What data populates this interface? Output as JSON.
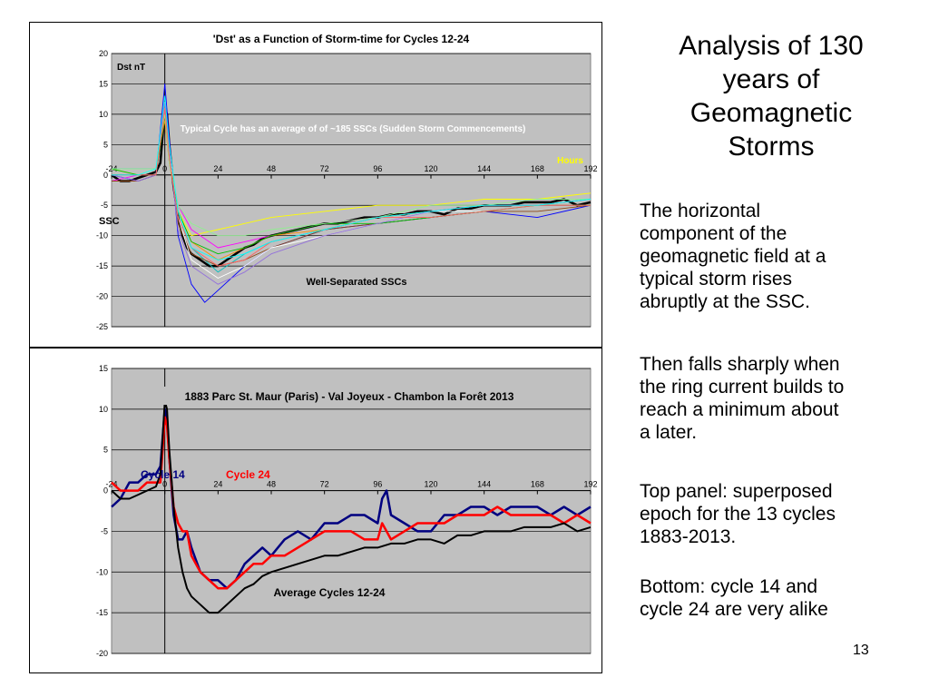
{
  "slide": {
    "title_lines": [
      "Analysis of 130",
      "years of",
      "Geomagnetic",
      "Storms"
    ],
    "paragraphs": [
      [
        "The horizontal",
        "component of the",
        "geomagnetic field at a",
        "typical storm rises",
        "abruptly at the SSC."
      ],
      [
        "Then falls sharply when",
        "the ring current builds to",
        "reach a minimum about",
        "a later."
      ],
      [
        "Top panel: superposed",
        "epoch for the 13 cycles",
        "1883-2013."
      ],
      [
        "Bottom: cycle 14 and",
        "cycle 24 are very alike"
      ]
    ],
    "page_number": "13"
  },
  "chart_data": [
    {
      "type": "line",
      "title": "'Dst' as a Function of Storm-time for Cycles 12-24",
      "xlabel": "Hours",
      "ylabel": "Dst nT",
      "xlim": [
        -24,
        192
      ],
      "ylim": [
        -25,
        20
      ],
      "xticks": [
        -24,
        0,
        24,
        48,
        72,
        96,
        120,
        144,
        168,
        192
      ],
      "yticks": [
        20,
        15,
        10,
        5,
        0,
        -5,
        -10,
        -15,
        -20,
        -25
      ],
      "grid": true,
      "background": "#c0c0c0",
      "annotations": {
        "note": "Typical Cycle has an average of of ~185 SSCs (Sudden Storm Commencements)",
        "ssc": "SSC",
        "bottom": "Well-Separated SSCs"
      },
      "series": [
        {
          "key": "average",
          "color": "#000000",
          "width": 2.5,
          "x": [
            -24,
            -20,
            -16,
            -12,
            -8,
            -4,
            -2,
            0,
            1,
            2,
            4,
            6,
            8,
            10,
            12,
            16,
            20,
            24,
            28,
            32,
            36,
            40,
            44,
            48,
            54,
            60,
            66,
            72,
            78,
            84,
            90,
            96,
            102,
            108,
            114,
            120,
            126,
            132,
            138,
            144,
            150,
            156,
            162,
            168,
            174,
            180,
            186,
            192
          ],
          "y": [
            0,
            -1,
            -1,
            -0.5,
            0,
            0.5,
            2,
            11,
            10,
            5,
            -2,
            -7,
            -10,
            -12,
            -13,
            -14,
            -15,
            -15,
            -14,
            -13,
            -12,
            -11.5,
            -10.5,
            -10,
            -9.5,
            -9,
            -8.5,
            -8,
            -8,
            -7.5,
            -7,
            -7,
            -6.5,
            -6.5,
            -6,
            -6,
            -6.5,
            -5.5,
            -5.5,
            -5,
            -5,
            -5,
            -4.5,
            -4.5,
            -4.5,
            -4,
            -5,
            -4.5
          ]
        },
        {
          "key": "c1",
          "color": "#ffff00",
          "width": 0.9,
          "x": [
            -24,
            -12,
            -4,
            0,
            2,
            6,
            12,
            24,
            36,
            48,
            72,
            96,
            120,
            144,
            168,
            192
          ],
          "y": [
            1,
            0,
            1,
            12,
            4,
            -6,
            -10,
            -9,
            -8,
            -7,
            -6,
            -5,
            -5,
            -4,
            -4,
            -3
          ]
        },
        {
          "key": "c2",
          "color": "#0000ff",
          "width": 0.9,
          "x": [
            -24,
            -12,
            -4,
            0,
            2,
            6,
            12,
            18,
            24,
            36,
            48,
            72,
            96,
            120,
            144,
            168,
            192
          ],
          "y": [
            0,
            -1,
            0,
            15,
            6,
            -10,
            -18,
            -21,
            -19,
            -15,
            -12,
            -9,
            -8,
            -7,
            -6,
            -7,
            -5
          ]
        },
        {
          "key": "c3",
          "color": "#ff00ff",
          "width": 0.9,
          "x": [
            -24,
            -12,
            -4,
            0,
            2,
            6,
            12,
            24,
            36,
            48,
            72,
            96,
            120,
            144,
            168,
            192
          ],
          "y": [
            -1,
            0,
            0,
            10,
            2,
            -5,
            -9,
            -12,
            -11,
            -10,
            -8,
            -7,
            -6,
            -5,
            -5,
            -5
          ]
        },
        {
          "key": "c4",
          "color": "#00bfbf",
          "width": 0.9,
          "x": [
            -24,
            -12,
            -4,
            0,
            2,
            6,
            12,
            24,
            36,
            48,
            72,
            96,
            120,
            144,
            168,
            192
          ],
          "y": [
            1,
            1,
            1,
            11,
            3,
            -7,
            -12,
            -16,
            -13,
            -11,
            -9,
            -7,
            -6,
            -6,
            -5,
            -4
          ]
        },
        {
          "key": "c5",
          "color": "#ff8c00",
          "width": 0.9,
          "x": [
            -24,
            -12,
            -4,
            0,
            2,
            6,
            12,
            24,
            36,
            48,
            72,
            96,
            120,
            144,
            168,
            192
          ],
          "y": [
            0,
            0,
            1,
            9,
            2,
            -6,
            -11,
            -14,
            -12,
            -10,
            -9,
            -7,
            -6,
            -5,
            -5,
            -4
          ]
        },
        {
          "key": "c6",
          "color": "#8b4513",
          "width": 0.9,
          "x": [
            -24,
            -12,
            -4,
            0,
            2,
            6,
            12,
            24,
            36,
            48,
            72,
            96,
            120,
            144,
            168,
            192
          ],
          "y": [
            -1,
            -1,
            0,
            10,
            3,
            -8,
            -13,
            -15,
            -14,
            -12,
            -9,
            -8,
            -7,
            -6,
            -6,
            -5
          ]
        },
        {
          "key": "c7",
          "color": "#ffffff",
          "width": 0.9,
          "x": [
            -24,
            -12,
            -4,
            0,
            2,
            6,
            12,
            24,
            36,
            48,
            72,
            96,
            120,
            144,
            168,
            192
          ],
          "y": [
            0,
            0,
            1,
            11,
            4,
            -7,
            -14,
            -17,
            -15,
            -12,
            -10,
            -8,
            -6,
            -6,
            -5,
            -5
          ]
        },
        {
          "key": "c8",
          "color": "#00c000",
          "width": 0.9,
          "x": [
            -24,
            -12,
            -4,
            0,
            2,
            6,
            12,
            24,
            36,
            48,
            72,
            96,
            120,
            144,
            168,
            192
          ],
          "y": [
            1,
            0,
            0,
            10,
            3,
            -6,
            -11,
            -13,
            -12,
            -10,
            -8,
            -8,
            -7,
            -6,
            -5,
            -5
          ]
        },
        {
          "key": "c9",
          "color": "#9370db",
          "width": 0.9,
          "x": [
            -24,
            -12,
            -4,
            0,
            2,
            6,
            12,
            24,
            36,
            48,
            72,
            96,
            120,
            144,
            168,
            192
          ],
          "y": [
            0,
            -1,
            0,
            12,
            4,
            -9,
            -15,
            -18,
            -16,
            -13,
            -10,
            -8,
            -6,
            -5,
            -5,
            -4
          ]
        },
        {
          "key": "c10",
          "color": "#90ee90",
          "width": 0.9,
          "x": [
            -24,
            -12,
            -4,
            0,
            2,
            6,
            12,
            24,
            36,
            48,
            72,
            96,
            120,
            144,
            168,
            192
          ],
          "y": [
            1,
            1,
            1,
            10,
            2,
            -5,
            -8,
            -10,
            -10,
            -9,
            -8,
            -7,
            -5,
            -5,
            -4,
            -4
          ]
        },
        {
          "key": "c11",
          "color": "#ff6060",
          "width": 0.9,
          "x": [
            -24,
            -12,
            -4,
            0,
            2,
            6,
            12,
            24,
            36,
            48,
            72,
            96,
            120,
            144,
            168,
            192
          ],
          "y": [
            0,
            0,
            0,
            11,
            3,
            -7,
            -12,
            -15,
            -14,
            -11,
            -9,
            -7,
            -7,
            -6,
            -5,
            -5
          ]
        },
        {
          "key": "c12",
          "color": "#00ffff",
          "width": 0.9,
          "x": [
            -24,
            -12,
            -4,
            0,
            2,
            6,
            12,
            24,
            36,
            48,
            72,
            96,
            120,
            144,
            168,
            192
          ],
          "y": [
            0,
            0,
            1,
            13,
            5,
            -6,
            -12,
            -14,
            -13,
            -11,
            -9,
            -7,
            -6,
            -5,
            -5,
            -4
          ]
        }
      ]
    },
    {
      "type": "line",
      "title": "1883 Parc St. Maur (Paris) - Val Joyeux - Chambon la Forêt 2013",
      "xlim": [
        -24,
        192
      ],
      "ylim": [
        -20,
        15
      ],
      "xticks": [
        -24,
        0,
        24,
        48,
        72,
        96,
        120,
        144,
        168,
        192
      ],
      "yticks": [
        15,
        10,
        5,
        0,
        -5,
        -10,
        -15,
        -20
      ],
      "grid": true,
      "background": "#c0c0c0",
      "annotations": {
        "bottom": "Average Cycles 12-24"
      },
      "series": [
        {
          "name": "Cycle 14",
          "color": "#000080",
          "width": 2.5,
          "x": [
            -24,
            -20,
            -16,
            -12,
            -8,
            -4,
            -2,
            0,
            1,
            2,
            4,
            6,
            8,
            10,
            12,
            16,
            20,
            24,
            28,
            32,
            36,
            40,
            44,
            48,
            54,
            60,
            66,
            72,
            78,
            84,
            90,
            96,
            98,
            100,
            102,
            108,
            114,
            120,
            126,
            132,
            138,
            144,
            150,
            156,
            162,
            168,
            174,
            180,
            186,
            192
          ],
          "y": [
            -2,
            -1,
            1,
            1,
            2,
            2,
            3,
            10,
            9,
            4,
            -3,
            -6,
            -6,
            -5,
            -7,
            -10,
            -11,
            -11,
            -12,
            -11,
            -9,
            -8,
            -7,
            -8,
            -6,
            -5,
            -6,
            -4,
            -4,
            -3,
            -3,
            -4,
            -1,
            0,
            -3,
            -4,
            -5,
            -5,
            -3,
            -3,
            -2,
            -2,
            -3,
            -2,
            -2,
            -2,
            -3,
            -2,
            -3,
            -2
          ]
        },
        {
          "name": "Cycle 24",
          "color": "#ff0000",
          "width": 2.5,
          "x": [
            -24,
            -20,
            -16,
            -12,
            -8,
            -4,
            -2,
            0,
            1,
            2,
            4,
            6,
            8,
            10,
            12,
            16,
            20,
            24,
            28,
            32,
            36,
            40,
            44,
            48,
            54,
            60,
            66,
            72,
            78,
            84,
            90,
            96,
            98,
            100,
            102,
            108,
            114,
            120,
            126,
            132,
            138,
            144,
            150,
            156,
            162,
            168,
            174,
            180,
            186,
            192
          ],
          "y": [
            1,
            0,
            0,
            0,
            1,
            1,
            1,
            9,
            8,
            4,
            -2,
            -4,
            -5,
            -5,
            -8,
            -10,
            -11,
            -12,
            -12,
            -11,
            -10,
            -9,
            -9,
            -8,
            -8,
            -7,
            -6,
            -5,
            -5,
            -5,
            -6,
            -6,
            -4,
            -5,
            -6,
            -5,
            -4,
            -4,
            -4,
            -3,
            -3,
            -3,
            -2,
            -3,
            -3,
            -3,
            -3,
            -4,
            -3,
            -4
          ]
        },
        {
          "key": "average",
          "color": "#000000",
          "width": 2.0,
          "x": [
            -24,
            -20,
            -16,
            -12,
            -8,
            -4,
            -2,
            0,
            1,
            2,
            4,
            6,
            8,
            10,
            12,
            16,
            20,
            24,
            28,
            32,
            36,
            40,
            44,
            48,
            54,
            60,
            66,
            72,
            78,
            84,
            90,
            96,
            102,
            108,
            114,
            120,
            126,
            132,
            138,
            144,
            150,
            156,
            162,
            168,
            174,
            180,
            186,
            192
          ],
          "y": [
            0,
            -1,
            -1,
            -0.5,
            0,
            0.5,
            2,
            11,
            10,
            5,
            -2,
            -7,
            -10,
            -12,
            -13,
            -14,
            -15,
            -15,
            -14,
            -13,
            -12,
            -11.5,
            -10.5,
            -10,
            -9.5,
            -9,
            -8.5,
            -8,
            -8,
            -7.5,
            -7,
            -7,
            -6.5,
            -6.5,
            -6,
            -6,
            -6.5,
            -5.5,
            -5.5,
            -5,
            -5,
            -5,
            -4.5,
            -4.5,
            -4.5,
            -4,
            -5,
            -4.5
          ]
        }
      ]
    }
  ]
}
